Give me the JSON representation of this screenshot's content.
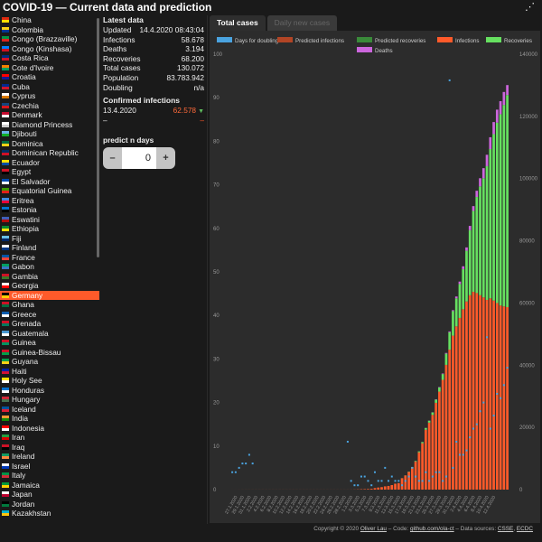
{
  "app": {
    "title": "COVID-19 — Current data and prediction"
  },
  "countries": [
    {
      "name": "China",
      "c1": "#de2910",
      "c2": "#ffde00"
    },
    {
      "name": "Colombia",
      "c1": "#fcd116",
      "c2": "#003893"
    },
    {
      "name": "Congo (Brazzaville)",
      "c1": "#009543",
      "c2": "#dc241f"
    },
    {
      "name": "Congo (Kinshasa)",
      "c1": "#007fff",
      "c2": "#ce1021"
    },
    {
      "name": "Costa Rica",
      "c1": "#002b7f",
      "c2": "#ce1126"
    },
    {
      "name": "Cote d'Ivoire",
      "c1": "#f77f00",
      "c2": "#009e60"
    },
    {
      "name": "Croatia",
      "c1": "#ff0000",
      "c2": "#171796"
    },
    {
      "name": "Cuba",
      "c1": "#002a8f",
      "c2": "#cf142b"
    },
    {
      "name": "Cyprus",
      "c1": "#ffffff",
      "c2": "#d57800"
    },
    {
      "name": "Czechia",
      "c1": "#11457e",
      "c2": "#d7141a"
    },
    {
      "name": "Denmark",
      "c1": "#c60c30",
      "c2": "#ffffff"
    },
    {
      "name": "Diamond Princess",
      "c1": "#ffffff",
      "c2": "#cccccc"
    },
    {
      "name": "Djibouti",
      "c1": "#6ab2e7",
      "c2": "#12ad2b"
    },
    {
      "name": "Dominica",
      "c1": "#006b3f",
      "c2": "#fcd116"
    },
    {
      "name": "Dominican Republic",
      "c1": "#002d62",
      "c2": "#ce1126"
    },
    {
      "name": "Ecuador",
      "c1": "#ffdd00",
      "c2": "#034ea2"
    },
    {
      "name": "Egypt",
      "c1": "#ce1126",
      "c2": "#000000"
    },
    {
      "name": "El Salvador",
      "c1": "#0047ab",
      "c2": "#ffffff"
    },
    {
      "name": "Equatorial Guinea",
      "c1": "#3e9a00",
      "c2": "#e32118"
    },
    {
      "name": "Eritrea",
      "c1": "#4189dd",
      "c2": "#ea0437"
    },
    {
      "name": "Estonia",
      "c1": "#0072ce",
      "c2": "#000000"
    },
    {
      "name": "Eswatini",
      "c1": "#3e5eb9",
      "c2": "#b10c0c"
    },
    {
      "name": "Ethiopia",
      "c1": "#078930",
      "c2": "#fcdd09"
    },
    {
      "name": "Fiji",
      "c1": "#68bfe5",
      "c2": "#002868"
    },
    {
      "name": "Finland",
      "c1": "#ffffff",
      "c2": "#003580"
    },
    {
      "name": "France",
      "c1": "#0055a4",
      "c2": "#ef4135"
    },
    {
      "name": "Gabon",
      "c1": "#009e60",
      "c2": "#3a75c4"
    },
    {
      "name": "Gambia",
      "c1": "#ce1126",
      "c2": "#3a7728"
    },
    {
      "name": "Georgia",
      "c1": "#ffffff",
      "c2": "#ff0000"
    },
    {
      "name": "Germany",
      "c1": "#000000",
      "c2": "#ffce00",
      "selected": true
    },
    {
      "name": "Ghana",
      "c1": "#ce1126",
      "c2": "#006b3f"
    },
    {
      "name": "Greece",
      "c1": "#0d5eaf",
      "c2": "#ffffff"
    },
    {
      "name": "Grenada",
      "c1": "#ce1126",
      "c2": "#007a5e"
    },
    {
      "name": "Guatemala",
      "c1": "#4997d0",
      "c2": "#ffffff"
    },
    {
      "name": "Guinea",
      "c1": "#ce1126",
      "c2": "#009460"
    },
    {
      "name": "Guinea-Bissau",
      "c1": "#ce1126",
      "c2": "#009e49"
    },
    {
      "name": "Guyana",
      "c1": "#009e49",
      "c2": "#fcd116"
    },
    {
      "name": "Haiti",
      "c1": "#00209f",
      "c2": "#d21034"
    },
    {
      "name": "Holy See",
      "c1": "#ffe000",
      "c2": "#ffffff"
    },
    {
      "name": "Honduras",
      "c1": "#0073cf",
      "c2": "#ffffff"
    },
    {
      "name": "Hungary",
      "c1": "#ce2939",
      "c2": "#477050"
    },
    {
      "name": "Iceland",
      "c1": "#02529c",
      "c2": "#dc1e35"
    },
    {
      "name": "India",
      "c1": "#ff9933",
      "c2": "#138808"
    },
    {
      "name": "Indonesia",
      "c1": "#ff0000",
      "c2": "#ffffff"
    },
    {
      "name": "Iran",
      "c1": "#239f40",
      "c2": "#da0000"
    },
    {
      "name": "Iraq",
      "c1": "#ce1126",
      "c2": "#000000"
    },
    {
      "name": "Ireland",
      "c1": "#169b62",
      "c2": "#ff883e"
    },
    {
      "name": "Israel",
      "c1": "#ffffff",
      "c2": "#0038b8"
    },
    {
      "name": "Italy",
      "c1": "#009246",
      "c2": "#ce2b37"
    },
    {
      "name": "Jamaica",
      "c1": "#009b3a",
      "c2": "#fed100"
    },
    {
      "name": "Japan",
      "c1": "#ffffff",
      "c2": "#bc002d"
    },
    {
      "name": "Jordan",
      "c1": "#000000",
      "c2": "#007a3d"
    },
    {
      "name": "Kazakhstan",
      "c1": "#00afca",
      "c2": "#fec50c"
    }
  ],
  "info": {
    "latest_heading": "Latest data",
    "rows": [
      {
        "label": "Updated",
        "value": "14.4.2020 08:43:04"
      },
      {
        "label": "Infections",
        "value": "58.678"
      },
      {
        "label": "Deaths",
        "value": "3.194"
      },
      {
        "label": "Recoveries",
        "value": "68.200"
      },
      {
        "label": "Total cases",
        "value": "130.072"
      },
      {
        "label": "Population",
        "value": "83.783.942"
      },
      {
        "label": "Doubling",
        "value": "n/a"
      }
    ],
    "confirmed_heading": "Confirmed infections",
    "confirmed_date": "13.4.2020",
    "confirmed_value": "62.578",
    "trend_icon": "▼",
    "dash_left": "–",
    "dash_right": "–",
    "predict_label": "predict n days",
    "predict_value": "0",
    "minus": "–",
    "plus": "+"
  },
  "tabs": [
    {
      "label": "Total cases",
      "active": true
    },
    {
      "label": "Daily new cases",
      "active": false
    }
  ],
  "footer": {
    "prefix": "Copyright © 2020 ",
    "author": "Oliver Lau",
    "mid": " – Code: ",
    "code": "github.com/ola-ct",
    "mid2": " – Data sources: ",
    "src1": "CSSE",
    "sep": ", ",
    "src2": "ECDC"
  },
  "share_icon": "⋰",
  "colors": {
    "doubling": "#4aa3df",
    "predicted_infections": "#b24525",
    "predicted_recoveries": "#3a8a3a",
    "infections": "#ff5a2a",
    "recoveries": "#66e060",
    "deaths": "#cc66dd"
  },
  "chart_data": {
    "type": "bar",
    "legend": [
      {
        "label": "Days for doubling",
        "key": "doubling"
      },
      {
        "label": "Predicted infections",
        "key": "predicted_infections"
      },
      {
        "label": "Predicted recoveries",
        "key": "predicted_recoveries"
      },
      {
        "label": "Infections",
        "key": "infections"
      },
      {
        "label": "Recoveries",
        "key": "recoveries"
      },
      {
        "label": "Deaths",
        "key": "deaths"
      }
    ],
    "legend_position": "top",
    "left_axis": {
      "ticks": [
        0,
        10,
        20,
        30,
        40,
        50,
        60,
        70,
        80,
        90,
        100
      ],
      "range": [
        0,
        100
      ]
    },
    "right_axis": {
      "ticks": [
        0,
        20000,
        40000,
        60000,
        80000,
        100000,
        120000,
        140000
      ],
      "range": [
        0,
        140000
      ]
    },
    "x_labels": [
      "27.1.2020",
      "29.1.2020",
      "31.1.2020",
      "2.2.2020",
      "4.2.2020",
      "6.2.2020",
      "8.2.2020",
      "10.2.2020",
      "12.2.2020",
      "14.2.2020",
      "16.2.2020",
      "18.2.2020",
      "20.2.2020",
      "22.2.2020",
      "24.2.2020",
      "26.2.2020",
      "28.2.2020",
      "1.3.2020",
      "3.3.2020",
      "5.3.2020",
      "7.3.2020",
      "9.3.2020",
      "11.3.2020",
      "13.3.2020",
      "15.3.2020",
      "17.3.2020",
      "19.3.2020",
      "21.3.2020",
      "23.3.2020",
      "25.3.2020",
      "27.3.2020",
      "29.3.2020",
      "31.3.2020",
      "2.4.2020",
      "4.4.2020",
      "6.4.2020",
      "8.4.2020",
      "10.4.2020",
      "12.4.2020"
    ],
    "totals": [
      1,
      4,
      5,
      8,
      10,
      12,
      13,
      14,
      16,
      16,
      16,
      16,
      16,
      16,
      16,
      16,
      16,
      16,
      16,
      16,
      16,
      16,
      16,
      16,
      16,
      16,
      16,
      16,
      16,
      16,
      16,
      16,
      16,
      16,
      16,
      18,
      26,
      48,
      79,
      130,
      159,
      196,
      262,
      482,
      670,
      799,
      1040,
      1176,
      1457,
      1908,
      2078,
      3675,
      4585,
      5795,
      7272,
      9257,
      12327,
      15320,
      19848,
      22213,
      24873,
      29056,
      32986,
      37323,
      43938,
      50871,
      57695,
      62095,
      66885,
      71808,
      77872,
      84794,
      91159,
      96092,
      100123,
      103374,
      107663,
      113296,
      118181,
      122171,
      124908,
      127854,
      130072
    ],
    "infections": [
      1,
      4,
      5,
      8,
      10,
      12,
      12,
      12,
      14,
      14,
      14,
      14,
      14,
      14,
      14,
      14,
      14,
      14,
      14,
      14,
      14,
      14,
      14,
      14,
      14,
      14,
      14,
      14,
      14,
      14,
      14,
      14,
      14,
      14,
      14,
      16,
      24,
      46,
      77,
      128,
      157,
      194,
      260,
      480,
      668,
      797,
      1038,
      1174,
      1455,
      1893,
      2062,
      3634,
      4534,
      5698,
      7100,
      9037,
      12006,
      14900,
      19255,
      21534,
      24020,
      27900,
      31500,
      35300,
      40100,
      45000,
      49500,
      52500,
      55200,
      58000,
      60500,
      62500,
      63600,
      63200,
      62500,
      61800,
      61000,
      61500,
      60800,
      60000,
      59200,
      58900,
      58678
    ],
    "recoveries": [
      0,
      0,
      0,
      0,
      0,
      0,
      1,
      2,
      2,
      2,
      2,
      2,
      2,
      2,
      2,
      2,
      2,
      2,
      2,
      2,
      2,
      2,
      2,
      2,
      2,
      2,
      2,
      2,
      2,
      2,
      2,
      2,
      2,
      2,
      2,
      2,
      2,
      2,
      2,
      2,
      2,
      2,
      2,
      2,
      2,
      2,
      2,
      2,
      2,
      12,
      12,
      36,
      46,
      90,
      160,
      200,
      300,
      390,
      550,
      620,
      790,
      1050,
      1350,
      1850,
      3600,
      5600,
      7900,
      9000,
      10900,
      12900,
      16300,
      20900,
      26000,
      30900,
      35000,
      38300,
      43000,
      48000,
      53500,
      58000,
      61500,
      64800,
      68200
    ],
    "deaths": [
      0,
      0,
      0,
      0,
      0,
      0,
      0,
      0,
      0,
      0,
      0,
      0,
      0,
      0,
      0,
      0,
      0,
      0,
      0,
      0,
      0,
      0,
      0,
      0,
      0,
      0,
      0,
      0,
      0,
      0,
      0,
      0,
      0,
      0,
      0,
      0,
      0,
      0,
      0,
      0,
      0,
      0,
      0,
      0,
      0,
      0,
      0,
      0,
      0,
      3,
      4,
      5,
      5,
      7,
      12,
      20,
      21,
      30,
      43,
      59,
      63,
      106,
      136,
      173,
      238,
      271,
      295,
      595,
      785,
      908,
      1072,
      1394,
      1559,
      1992,
      2623,
      3254,
      3663,
      3796,
      3881,
      4171,
      4208,
      4152,
      3194
    ],
    "doubling": [
      null,
      4,
      4,
      5,
      6,
      6,
      8,
      6,
      0,
      0,
      0,
      0,
      0,
      0,
      0,
      0,
      0,
      0,
      0,
      0,
      0,
      0,
      0,
      0,
      0,
      0,
      0,
      0,
      0,
      0,
      0,
      0,
      0,
      0,
      0,
      11,
      2,
      1,
      1,
      3,
      3,
      2,
      1,
      4,
      2,
      2,
      5,
      2,
      3,
      2,
      2,
      1,
      2,
      3,
      5,
      3,
      2,
      2,
      4,
      2,
      3,
      4,
      4,
      2,
      3,
      94,
      5,
      11,
      8,
      8,
      9,
      12,
      14,
      15,
      18,
      20,
      35,
      14,
      17,
      22,
      21,
      24,
      28
    ]
  }
}
